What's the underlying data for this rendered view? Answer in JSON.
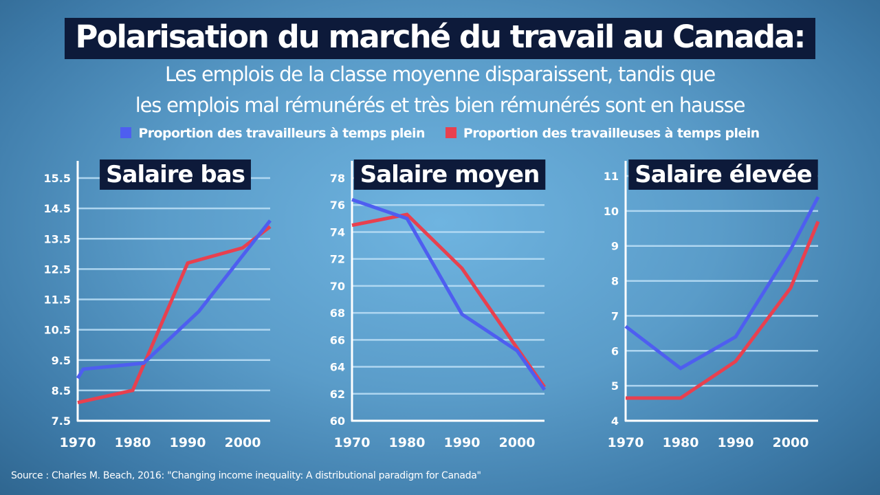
{
  "header": {
    "title": "Polarisation du marché du travail au Canada:",
    "subtitle_line1": "Les emplois de la classe moyenne disparaissent, tandis que",
    "subtitle_line2": "les emplois mal rémunérés et très bien rémunérés sont en hausse"
  },
  "legend": [
    {
      "label": "Proportion des travailleurs à temps plein",
      "color": "#4e5ef0"
    },
    {
      "label": "Proportion des travailleuses à temps plein",
      "color": "#e8404f"
    }
  ],
  "source": "Source : Charles M. Beach, 2016: \"Changing income inequality: A distributional paradigm for Canada\"",
  "chart_data": [
    {
      "type": "line",
      "title": "Salaire bas",
      "xlim": [
        1970,
        2005
      ],
      "ylim": [
        7.5,
        15.5
      ],
      "x_ticks": [
        1970,
        1980,
        1990,
        2000
      ],
      "x_tick_labels": [
        "1970",
        "1980",
        "1990",
        "2000"
      ],
      "y_ticks": [
        7.5,
        8.5,
        9.5,
        10.5,
        11.5,
        12.5,
        13.5,
        14.5,
        15.5
      ],
      "y_tick_labels": [
        "7.5",
        "8.5",
        "9.5",
        "10.5",
        "11.5",
        "12.5",
        "13.5",
        "14.5",
        "15.5"
      ],
      "grid": true,
      "series": [
        {
          "name": "Proportion des travailleurs à temps plein",
          "color": "#4e5ef0",
          "x": [
            1970,
            1971,
            1982,
            1992,
            2005
          ],
          "y": [
            8.9,
            9.2,
            9.4,
            11.1,
            14.1
          ]
        },
        {
          "name": "Proportion des travailleuses à temps plein",
          "color": "#e8404f",
          "x": [
            1970,
            1980,
            1990,
            2000,
            2005
          ],
          "y": [
            8.1,
            8.5,
            12.7,
            13.2,
            13.9
          ]
        }
      ]
    },
    {
      "type": "line",
      "title": "Salaire moyen",
      "xlim": [
        1970,
        2005
      ],
      "ylim": [
        60,
        78
      ],
      "x_ticks": [
        1970,
        1980,
        1990,
        2000
      ],
      "x_tick_labels": [
        "1970",
        "1980",
        "1990",
        "2000"
      ],
      "y_ticks": [
        60,
        62,
        64,
        66,
        68,
        70,
        72,
        74,
        76,
        78
      ],
      "y_tick_labels": [
        "60",
        "62",
        "64",
        "66",
        "68",
        "70",
        "72",
        "74",
        "76",
        "78"
      ],
      "grid": true,
      "series": [
        {
          "name": "Proportion des travailleurs à temps plein",
          "color": "#4e5ef0",
          "x": [
            1970,
            1980,
            1990,
            2000,
            2005
          ],
          "y": [
            76.4,
            75.0,
            67.9,
            65.2,
            62.3
          ]
        },
        {
          "name": "Proportion des travailleuses à temps plein",
          "color": "#e8404f",
          "x": [
            1970,
            1980,
            1990,
            2000,
            2005
          ],
          "y": [
            74.5,
            75.3,
            71.3,
            65.4,
            62.5
          ]
        }
      ]
    },
    {
      "type": "line",
      "title": "Salaire élevée",
      "xlim": [
        1970,
        2005
      ],
      "ylim": [
        4,
        11
      ],
      "x_ticks": [
        1970,
        1980,
        1990,
        2000
      ],
      "x_tick_labels": [
        "1970",
        "1980",
        "1990",
        "2000"
      ],
      "y_ticks": [
        4,
        5,
        6,
        7,
        8,
        9,
        10,
        11
      ],
      "y_tick_labels": [
        "4",
        "5",
        "6",
        "7",
        "8",
        "9",
        "10",
        "11"
      ],
      "grid": true,
      "series": [
        {
          "name": "Proportion des travailleurs à temps plein",
          "color": "#4e5ef0",
          "x": [
            1970,
            1980,
            1990,
            2000,
            2005
          ],
          "y": [
            6.7,
            5.5,
            6.4,
            8.9,
            10.4
          ]
        },
        {
          "name": "Proportion des travailleuses à temps plein",
          "color": "#e8404f",
          "x": [
            1970,
            1980,
            1990,
            2000,
            2005
          ],
          "y": [
            4.65,
            4.65,
            5.7,
            7.8,
            9.7
          ]
        }
      ]
    }
  ]
}
